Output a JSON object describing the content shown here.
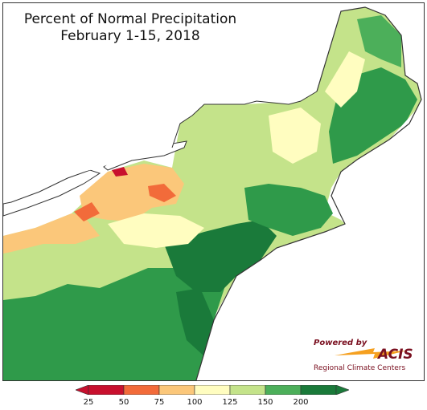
{
  "title": {
    "line1": "Percent of Normal Precipitation",
    "line2": "February 1-15, 2018"
  },
  "logo": {
    "powered_by": "Powered by",
    "brand": "ACIS",
    "subtitle": "Regional Climate Centers"
  },
  "legend": {
    "ticks": [
      "25",
      "50",
      "75",
      "100",
      "125",
      "150",
      "200"
    ],
    "colors": [
      "#c8102e",
      "#f26b3a",
      "#fbc77a",
      "#fffdc0",
      "#c4e38a",
      "#4caf5a",
      "#1a7a3a"
    ]
  },
  "palette": {
    "water": "#ffffff",
    "outside": "#ffffff",
    "boundary": "#333333"
  }
}
